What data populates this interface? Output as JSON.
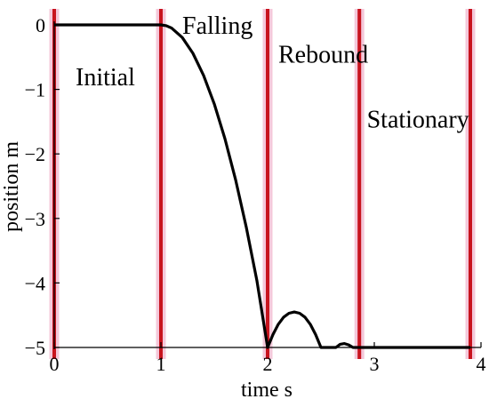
{
  "chart_data": {
    "type": "line",
    "title": "",
    "xlabel": "time s",
    "ylabel": "position m",
    "xlim": [
      0,
      4
    ],
    "ylim": [
      -5,
      0
    ],
    "x_ticks": [
      "0",
      "1",
      "2",
      "3",
      "4"
    ],
    "y_ticks": [
      "0",
      "−1",
      "−2",
      "−3",
      "−4",
      "−5"
    ],
    "x_tick_values": [
      0,
      1,
      2,
      3,
      4
    ],
    "y_tick_values": [
      0,
      -1,
      -2,
      -3,
      -4,
      -5
    ],
    "grid": false,
    "series": [
      {
        "color": "#000000",
        "x": [
          0,
          1.0,
          1.05,
          1.1,
          1.2,
          1.3,
          1.4,
          1.5,
          1.6,
          1.7,
          1.8,
          1.9,
          2.0,
          2.05,
          2.1,
          2.15,
          2.2,
          2.25,
          2.3,
          2.35,
          2.4,
          2.45,
          2.5,
          2.55,
          2.6,
          2.64,
          2.68,
          2.72,
          2.76,
          2.8,
          2.86,
          3.9
        ],
        "y": [
          0,
          0,
          -0.012,
          -0.049,
          -0.196,
          -0.441,
          -0.784,
          -1.225,
          -1.764,
          -2.401,
          -3.136,
          -3.969,
          -5.0,
          -4.8,
          -4.64,
          -4.53,
          -4.47,
          -4.45,
          -4.47,
          -4.53,
          -4.64,
          -4.8,
          -5.0,
          -5.0,
          -5.0,
          -5.0,
          -4.95,
          -4.94,
          -4.96,
          -5.0,
          -5.0,
          -5.0
        ]
      }
    ],
    "phase_lines": {
      "color": "#c8141e",
      "x": [
        0,
        1.0,
        2.0,
        2.86,
        3.9
      ]
    },
    "annotations": [
      {
        "text": "Initial",
        "x": 0.2,
        "y": -0.8
      },
      {
        "text": "Falling",
        "x": 1.2,
        "y": 0.0
      },
      {
        "text": "Rebound",
        "x": 2.1,
        "y": -0.45
      },
      {
        "text": "Stationary",
        "x": 2.93,
        "y": -1.45
      }
    ]
  }
}
